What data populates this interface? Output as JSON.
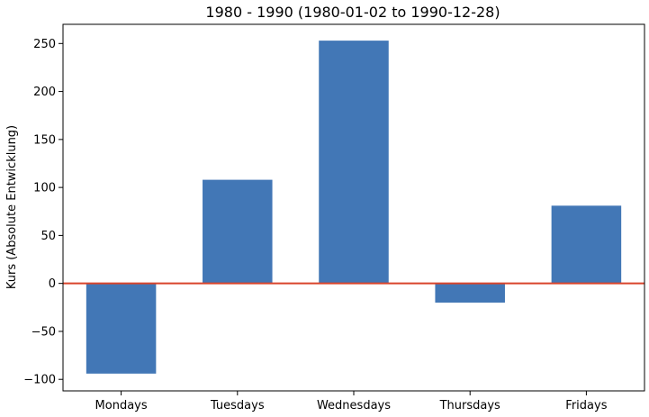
{
  "chart_data": {
    "type": "bar",
    "title": "1980 - 1990 (1980-01-02 to 1990-12-28)",
    "xlabel": "",
    "ylabel": "Kurs (Absolute Entwicklung)",
    "categories": [
      "Mondays",
      "Tuesdays",
      "Wednesdays",
      "Thursdays",
      "Fridays"
    ],
    "values": [
      -94,
      108,
      253,
      -20,
      81
    ],
    "ylim": [
      -112,
      270
    ],
    "yticks": [
      -100,
      -50,
      0,
      50,
      100,
      150,
      200,
      250
    ],
    "ytick_labels": [
      "−100",
      "−50",
      "0",
      "50",
      "100",
      "150",
      "200",
      "250"
    ],
    "grid": false,
    "zero_line": true,
    "colors": {
      "bar": "#4277b6",
      "zero_line": "#d9442b",
      "axis": "#000000"
    }
  }
}
